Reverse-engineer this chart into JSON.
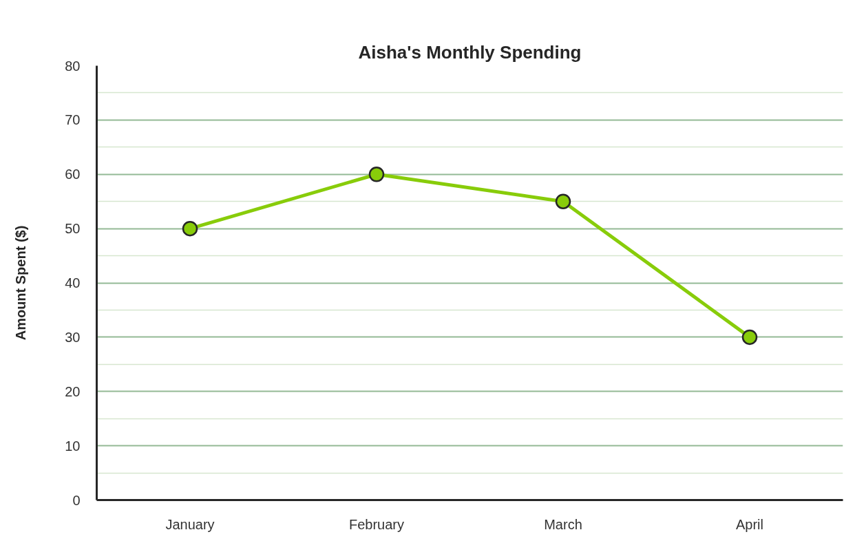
{
  "chart_data": {
    "type": "line",
    "title": "Aisha's Monthly Spending",
    "ylabel": "Amount Spent ($)",
    "categories": [
      "January",
      "February",
      "March",
      "April"
    ],
    "series": [
      {
        "color": "#88cc0a",
        "values": [
          50,
          60,
          55,
          30
        ]
      }
    ],
    "ylim": [
      0,
      80
    ],
    "yticks": [
      0,
      10,
      20,
      30,
      40,
      50,
      60,
      70,
      80
    ],
    "grid": "y",
    "marker": "circle",
    "line_style": "solid"
  }
}
